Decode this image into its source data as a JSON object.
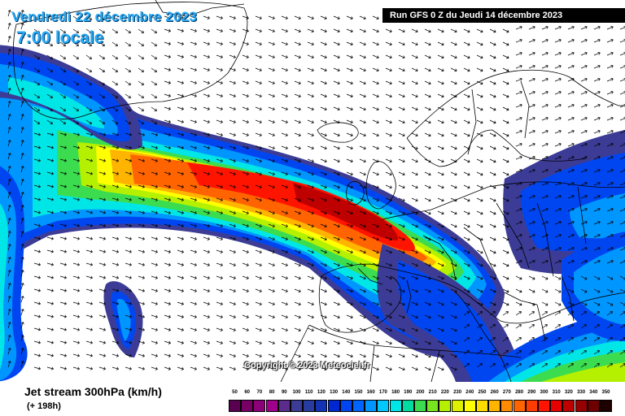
{
  "header": {
    "date": "Vendredi 22 décembre 2023",
    "local_time": "7:00 locale",
    "run_info": "Run GFS 0 Z du Jeudi 14 décembre 2023"
  },
  "map": {
    "copyright": "Copyright © 2023 Meteociel.fr",
    "colors": {
      "land": "#ffffff",
      "borders": "#000000",
      "wind_arrows": "#000000"
    },
    "jet_axis_description_hidden": ""
  },
  "footer": {
    "product_title": "Jet stream 300hPa (km/h)",
    "lead_time": "(+ 198h)"
  },
  "legend": {
    "labels": [
      "50",
      "60",
      "70",
      "80",
      "90",
      "100",
      "110",
      "120",
      "130",
      "140",
      "150",
      "160",
      "170",
      "180",
      "190",
      "200",
      "210",
      "220",
      "230",
      "240",
      "250",
      "260",
      "270",
      "280",
      "290",
      "300",
      "310",
      "320",
      "330",
      "340",
      "350"
    ],
    "colors": [
      "#5a0050",
      "#780064",
      "#8c0078",
      "#a0008c",
      "#5a2d8c",
      "#3c3c96",
      "#283ca0",
      "#1432b4",
      "#0028d2",
      "#0046f0",
      "#0064ff",
      "#0096ff",
      "#00c8ff",
      "#00e6e6",
      "#00dca0",
      "#3cdc50",
      "#78e61e",
      "#b4f000",
      "#dcf000",
      "#ffff00",
      "#ffdc00",
      "#ffb400",
      "#ff8c00",
      "#ff6400",
      "#ff3c00",
      "#ff1400",
      "#e60000",
      "#be0000",
      "#960000",
      "#6e0000",
      "#1e0000"
    ]
  }
}
